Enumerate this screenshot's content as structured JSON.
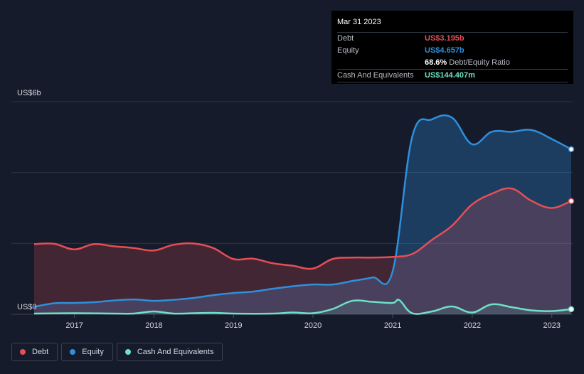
{
  "tooltip": {
    "date": "Mar 31 2023",
    "rows": [
      {
        "label": "Debt",
        "value": "US$3.195b",
        "color": "#e64e57"
      },
      {
        "label": "Equity",
        "value": "US$4.657b",
        "color": "#2f8fdb"
      },
      {
        "label": "",
        "value": "68.6%",
        "suffix": "Debt/Equity Ratio",
        "color": "#ffffff"
      },
      {
        "label": "Cash And Equivalents",
        "value": "US$144.407m",
        "color": "#6fe0c6"
      }
    ]
  },
  "legend": [
    {
      "label": "Debt",
      "color": "#e64e57"
    },
    {
      "label": "Equity",
      "color": "#2f8fdb"
    },
    {
      "label": "Cash And Equivalents",
      "color": "#6fe0c6"
    }
  ],
  "chart_data": {
    "type": "area",
    "ylabel_top": "US$6b",
    "ylabel_bottom": "US$0",
    "ylim": [
      0,
      6
    ],
    "y_unit": "US$ billions",
    "x_ticks": [
      "2017",
      "2018",
      "2019",
      "2020",
      "2021",
      "2022",
      "2023"
    ],
    "xlim": [
      "2016-06-30",
      "2023-03-31"
    ],
    "grid": true,
    "series": [
      {
        "name": "Debt",
        "color": "#e64e57",
        "points": [
          [
            "2016-06-30",
            1.98
          ],
          [
            "2016-09-30",
            1.99
          ],
          [
            "2016-12-31",
            1.83
          ],
          [
            "2017-03-31",
            1.98
          ],
          [
            "2017-06-30",
            1.92
          ],
          [
            "2017-09-30",
            1.87
          ],
          [
            "2017-12-31",
            1.8
          ],
          [
            "2018-03-31",
            1.96
          ],
          [
            "2018-06-30",
            2.0
          ],
          [
            "2018-09-30",
            1.87
          ],
          [
            "2018-12-31",
            1.56
          ],
          [
            "2019-03-31",
            1.57
          ],
          [
            "2019-06-30",
            1.44
          ],
          [
            "2019-09-30",
            1.37
          ],
          [
            "2019-12-31",
            1.29
          ],
          [
            "2020-03-31",
            1.56
          ],
          [
            "2020-06-30",
            1.6
          ],
          [
            "2020-09-30",
            1.6
          ],
          [
            "2020-12-31",
            1.62
          ],
          [
            "2021-03-31",
            1.7
          ],
          [
            "2021-06-30",
            2.1
          ],
          [
            "2021-09-30",
            2.5
          ],
          [
            "2021-12-31",
            3.1
          ],
          [
            "2022-03-31",
            3.4
          ],
          [
            "2022-06-30",
            3.55
          ],
          [
            "2022-09-30",
            3.2
          ],
          [
            "2022-12-31",
            3.0
          ],
          [
            "2023-03-31",
            3.195
          ]
        ]
      },
      {
        "name": "Equity",
        "color": "#2f8fdb",
        "points": [
          [
            "2016-06-30",
            0.21
          ],
          [
            "2016-09-30",
            0.31
          ],
          [
            "2016-12-31",
            0.32
          ],
          [
            "2017-03-31",
            0.34
          ],
          [
            "2017-06-30",
            0.39
          ],
          [
            "2017-09-30",
            0.42
          ],
          [
            "2017-12-31",
            0.38
          ],
          [
            "2018-03-31",
            0.41
          ],
          [
            "2018-06-30",
            0.46
          ],
          [
            "2018-09-30",
            0.54
          ],
          [
            "2018-12-31",
            0.6
          ],
          [
            "2019-03-31",
            0.64
          ],
          [
            "2019-06-30",
            0.72
          ],
          [
            "2019-09-30",
            0.79
          ],
          [
            "2019-12-31",
            0.84
          ],
          [
            "2020-03-31",
            0.84
          ],
          [
            "2020-06-30",
            0.94
          ],
          [
            "2020-09-30",
            1.04
          ],
          [
            "2020-12-31",
            1.2
          ],
          [
            "2021-03-31",
            5.0
          ],
          [
            "2021-06-30",
            5.5
          ],
          [
            "2021-09-30",
            5.55
          ],
          [
            "2021-12-31",
            4.8
          ],
          [
            "2022-03-31",
            5.15
          ],
          [
            "2022-06-30",
            5.15
          ],
          [
            "2022-09-30",
            5.2
          ],
          [
            "2022-12-31",
            4.95
          ],
          [
            "2023-03-31",
            4.657
          ]
        ]
      },
      {
        "name": "Cash And Equivalents",
        "color": "#6fe0c6",
        "points": [
          [
            "2016-06-30",
            0.02
          ],
          [
            "2016-12-31",
            0.03
          ],
          [
            "2017-06-30",
            0.02
          ],
          [
            "2017-09-30",
            0.02
          ],
          [
            "2017-12-31",
            0.08
          ],
          [
            "2018-03-31",
            0.02
          ],
          [
            "2018-06-30",
            0.03
          ],
          [
            "2018-09-30",
            0.04
          ],
          [
            "2018-12-31",
            0.02
          ],
          [
            "2019-06-30",
            0.02
          ],
          [
            "2019-09-30",
            0.05
          ],
          [
            "2019-12-31",
            0.03
          ],
          [
            "2020-03-31",
            0.15
          ],
          [
            "2020-06-30",
            0.38
          ],
          [
            "2020-09-30",
            0.35
          ],
          [
            "2020-12-31",
            0.32
          ],
          [
            "2021-01-31",
            0.4
          ],
          [
            "2021-03-31",
            0.03
          ],
          [
            "2021-06-30",
            0.08
          ],
          [
            "2021-09-30",
            0.22
          ],
          [
            "2021-12-31",
            0.05
          ],
          [
            "2022-03-31",
            0.28
          ],
          [
            "2022-06-30",
            0.2
          ],
          [
            "2022-09-30",
            0.11
          ],
          [
            "2022-12-31",
            0.09
          ],
          [
            "2023-03-31",
            0.144
          ]
        ]
      }
    ]
  }
}
